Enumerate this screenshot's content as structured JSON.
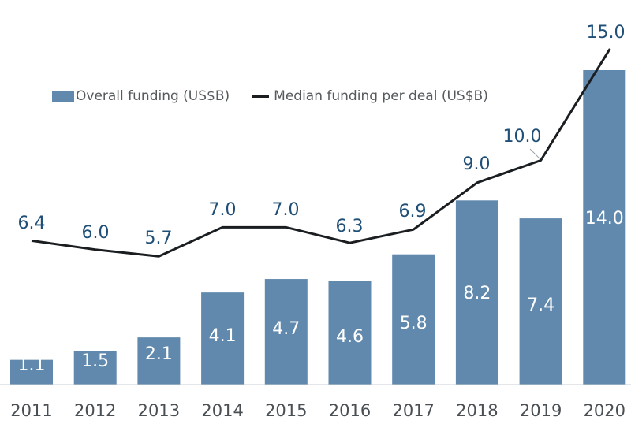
{
  "chart_data": {
    "type": "bar",
    "categories": [
      "2011",
      "2012",
      "2013",
      "2014",
      "2015",
      "2016",
      "2017",
      "2018",
      "2019",
      "2020"
    ],
    "series": [
      {
        "name": "Overall funding (US$B)",
        "kind": "bar",
        "values": [
          1.1,
          1.5,
          2.1,
          4.1,
          4.7,
          4.6,
          5.8,
          8.2,
          7.4,
          14.0
        ],
        "labels": [
          "1.1",
          "1.5",
          "2.1",
          "4.1",
          "4.7",
          "4.6",
          "5.8",
          "8.2",
          "7.4",
          "14.0"
        ]
      },
      {
        "name": "Median funding per deal (US$B)",
        "kind": "line",
        "values": [
          6.4,
          6.0,
          5.7,
          7.0,
          7.0,
          6.3,
          6.9,
          9.0,
          10.0,
          15.0
        ],
        "labels": [
          "6.4",
          "6.0",
          "5.7",
          "7.0",
          "7.0",
          "6.3",
          "6.9",
          "9.0",
          "10.0",
          "15.0"
        ]
      }
    ],
    "legend_position": "top-left",
    "grid": false,
    "colors": {
      "bar": "#6189ad",
      "line": "#1a1e21",
      "line_label": "#1f4f77",
      "bar_label": "#ffffff",
      "axis_text": "#4a4f54"
    }
  }
}
